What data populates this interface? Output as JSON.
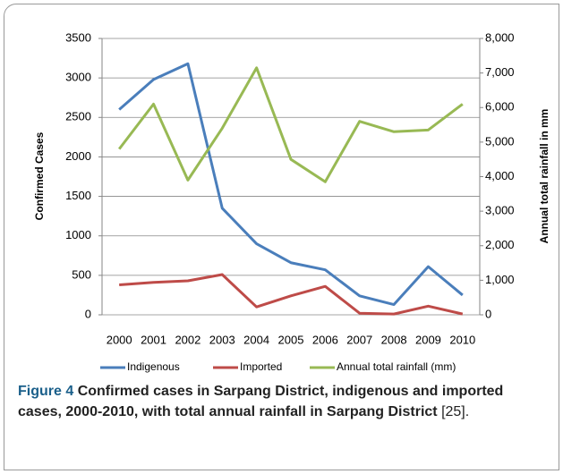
{
  "chart_data": {
    "type": "line",
    "categories": [
      "2000",
      "2001",
      "2002",
      "2003",
      "2004",
      "2005",
      "2006",
      "2007",
      "2008",
      "2009",
      "2010"
    ],
    "series": [
      {
        "name": "Indigenous",
        "color": "#4a7ebb",
        "values": [
          2600,
          2980,
          3180,
          1350,
          900,
          660,
          570,
          240,
          130,
          610,
          250
        ]
      },
      {
        "name": "Imported",
        "color": "#be4b48",
        "values": [
          380,
          410,
          430,
          510,
          100,
          240,
          360,
          20,
          10,
          110,
          10
        ]
      },
      {
        "name": "Annual total rainfall (mm)",
        "color": "#98b954",
        "axis": "y2",
        "values": [
          4800,
          6100,
          3900,
          5400,
          7150,
          4500,
          3850,
          5600,
          5300,
          5350,
          6100
        ]
      }
    ],
    "ylabel": "Confirmed Cases",
    "y2label": "Annual total rainfall in mm",
    "ylim": [
      0,
      3500
    ],
    "yticks": [
      0,
      500,
      1000,
      1500,
      2000,
      2500,
      3000,
      3500
    ],
    "y2lim": [
      0,
      8000
    ],
    "y2ticks": [
      0,
      {
        "value": 1000,
        "label": "1,000"
      },
      {
        "value": 2000,
        "label": "2,000"
      },
      {
        "value": 3000,
        "label": "3,000"
      },
      {
        "value": 4000,
        "label": "4,000"
      },
      {
        "value": 5000,
        "label": "5,000"
      },
      {
        "value": 6000,
        "label": "6,000"
      },
      {
        "value": 7000,
        "label": "7,000"
      },
      {
        "value": 8000,
        "label": "8,000"
      }
    ],
    "grid": true,
    "legend": "bottom"
  },
  "caption": {
    "label": "Figure 4",
    "text": "Confirmed cases in Sarpang District, indigenous and imported cases, 2000-2010, with total annual rainfall in Sarpang District",
    "ref": "[25]."
  }
}
